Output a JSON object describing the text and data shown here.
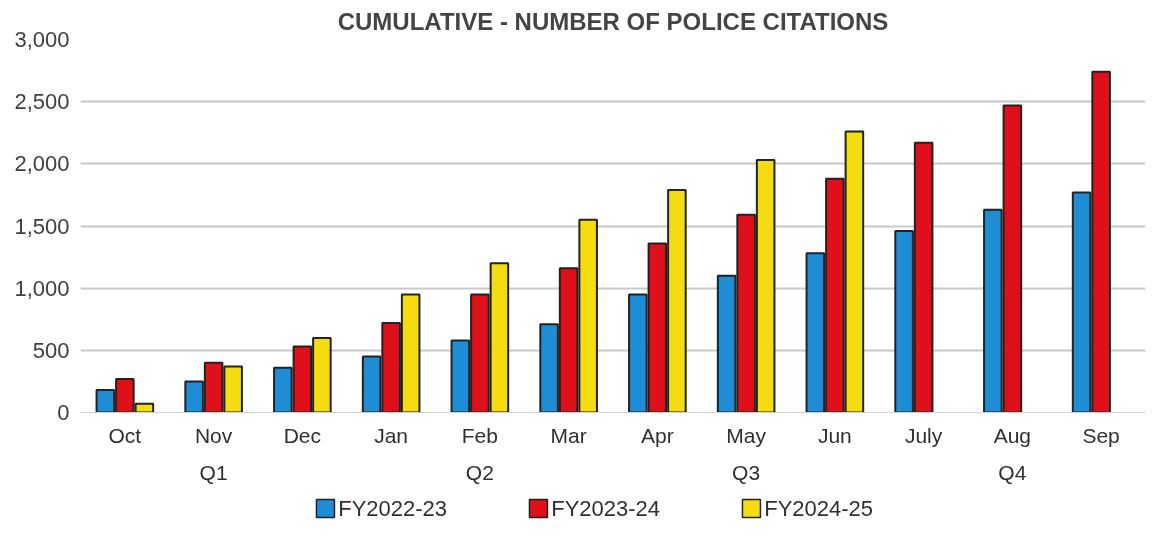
{
  "chart_data": {
    "type": "bar",
    "title": "CUMULATIVE - NUMBER OF POLICE CITATIONS",
    "categories": [
      "Oct",
      "Nov",
      "Dec",
      "Jan",
      "Feb",
      "Mar",
      "Apr",
      "May",
      "Jun",
      "July",
      "Aug",
      "Sep"
    ],
    "annotations": [
      "Q1",
      "Q2",
      "Q3",
      "Q4"
    ],
    "series": [
      {
        "name": "FY2022-23",
        "color": "#1f8dd6",
        "values": [
          180,
          250,
          360,
          450,
          580,
          710,
          950,
          1100,
          1280,
          1460,
          1630,
          1770
        ]
      },
      {
        "name": "FY2023-24",
        "color": "#e0101a",
        "values": [
          270,
          400,
          530,
          720,
          950,
          1160,
          1360,
          1590,
          1880,
          2170,
          2470,
          2740
        ]
      },
      {
        "name": "FY2024-25",
        "color": "#f5dc10",
        "values": [
          70,
          370,
          600,
          950,
          1200,
          1550,
          1790,
          2030,
          2260,
          null,
          null,
          null
        ]
      }
    ],
    "ylim": [
      0,
      3000
    ],
    "yticks": [
      0,
      {
        "value": 500,
        "label": "500"
      },
      {
        "value": 1000,
        "label": "1,000"
      },
      {
        "value": 1500,
        "label": "1,500"
      },
      {
        "value": 2000,
        "label": "2,000"
      },
      {
        "value": 2500,
        "label": "2,500"
      },
      {
        "value": 3000,
        "label": "3,000"
      }
    ],
    "grid": "y",
    "legend": "bottom"
  }
}
